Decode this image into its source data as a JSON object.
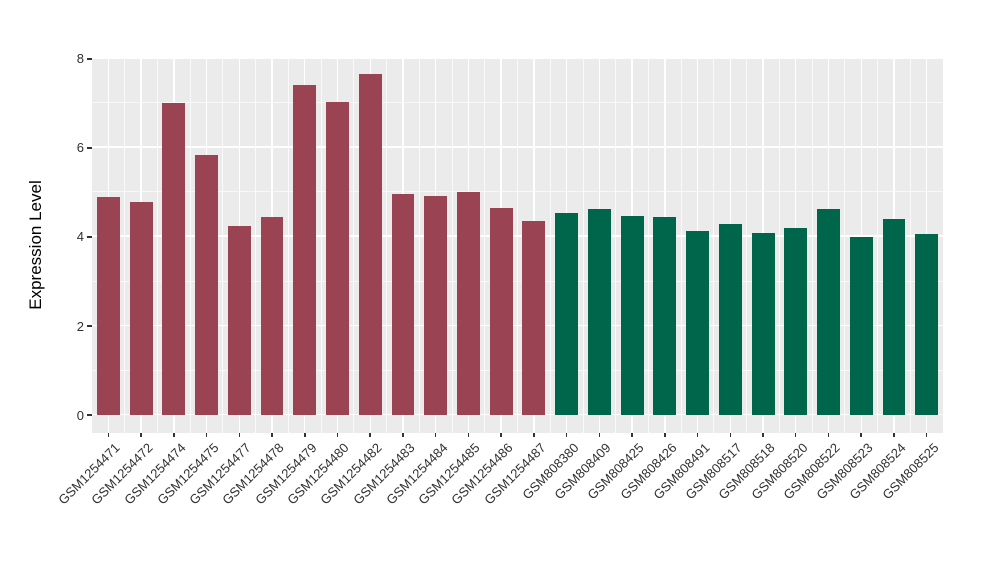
{
  "chart_data": {
    "type": "bar",
    "title": "",
    "xlabel": "",
    "ylabel": "Expression Level",
    "ylim": [
      0,
      8
    ],
    "ylim_expanded": [
      -0.4,
      8.04
    ],
    "yticks": [
      0,
      2,
      4,
      6,
      8
    ],
    "yminor": [
      1,
      3,
      5,
      7
    ],
    "grid": true,
    "legend_position": "none",
    "categories": [
      "GSM1254471",
      "GSM1254472",
      "GSM1254474",
      "GSM1254475",
      "GSM1254477",
      "GSM1254478",
      "GSM1254479",
      "GSM1254480",
      "GSM1254482",
      "GSM1254483",
      "GSM1254484",
      "GSM1254485",
      "GSM1254486",
      "GSM1254487",
      "GSM808380",
      "GSM808409",
      "GSM808425",
      "GSM808426",
      "GSM808491",
      "GSM808517",
      "GSM808518",
      "GSM808520",
      "GSM808522",
      "GSM808523",
      "GSM808524",
      "GSM808525"
    ],
    "values": [
      4.9,
      4.78,
      7.0,
      5.85,
      4.25,
      4.44,
      7.42,
      7.02,
      7.65,
      4.96,
      4.92,
      5.01,
      4.66,
      4.35,
      4.54,
      4.63,
      4.47,
      4.46,
      4.13,
      4.3,
      4.08,
      4.21,
      4.63,
      4.0,
      4.41,
      4.06
    ],
    "bar_groups": [
      "maroon",
      "maroon",
      "maroon",
      "maroon",
      "maroon",
      "maroon",
      "maroon",
      "maroon",
      "maroon",
      "maroon",
      "maroon",
      "maroon",
      "maroon",
      "maroon",
      "green",
      "green",
      "green",
      "green",
      "green",
      "green",
      "green",
      "green",
      "green",
      "green",
      "green",
      "green"
    ],
    "group_colors": {
      "maroon": "#9A4353",
      "green": "#00664B"
    },
    "colors": {
      "panel_background": "#EBEBEB",
      "grid": "#FFFFFF",
      "tick": "#333333",
      "axis_text": "#303030",
      "axis_title": "#000000",
      "outer_background": "#FFFFFF"
    }
  }
}
